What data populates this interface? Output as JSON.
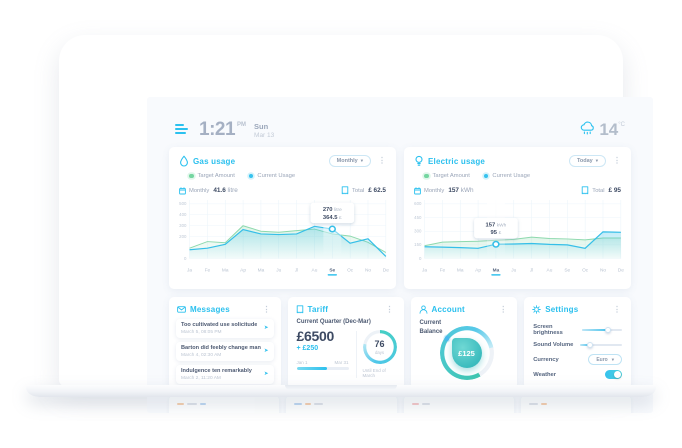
{
  "header": {
    "time": "1:21",
    "meridiem": "PM",
    "day": "Sun",
    "date": "Mar 13",
    "temperature": "14",
    "temp_unit": "°C"
  },
  "icons": {
    "kebab": "⋮",
    "caret_down": "▾",
    "arrow": "➤"
  },
  "colors": {
    "accent_cyan": "#2bc0ee",
    "target_green": "#8ed9ae",
    "current_cyan": "#36bfe8",
    "teal": "#3cbcbe",
    "dark_text": "#3d4a63",
    "muted_text": "#9aa5b8"
  },
  "gas_panel": {
    "title": "Gas usage",
    "period_selector": "Monthly",
    "legend": [
      {
        "label": "Target Amount",
        "color": "#74d6a0"
      },
      {
        "label": "Current Usage",
        "color": "#35c2ee"
      }
    ],
    "period_label": "Monthly",
    "period_value": "41.6",
    "period_unit": "litre",
    "total_label": "Total",
    "total_value": "£ 62.5",
    "tooltip": {
      "value": "270",
      "unit": "litre",
      "cost": "364.5",
      "currency": "£"
    },
    "chart_data": {
      "type": "area",
      "categories": [
        "Ja",
        "Fe",
        "Ma",
        "Ap",
        "Ma",
        "Ju",
        "Jl",
        "Au",
        "Se",
        "Oc",
        "No",
        "De"
      ],
      "series": [
        {
          "name": "Target Amount",
          "color": "#8ed9ae",
          "values": [
            95,
            155,
            145,
            300,
            250,
            240,
            255,
            270,
            225,
            205,
            148,
            55
          ]
        },
        {
          "name": "Current Usage",
          "color": "#36bfe8",
          "values": [
            80,
            95,
            130,
            265,
            225,
            220,
            225,
            295,
            270,
            140,
            180,
            20
          ]
        }
      ],
      "ylim": [
        0,
        500
      ],
      "yticks": [
        500,
        400,
        300,
        200,
        0
      ],
      "selected_index": 8,
      "selected_label": "Se"
    }
  },
  "electric_panel": {
    "title": "Electric usage",
    "period_selector": "Today",
    "legend": [
      {
        "label": "Target Amount",
        "color": "#74d6a0"
      },
      {
        "label": "Current Usage",
        "color": "#35c2ee"
      }
    ],
    "period_label": "Monthly",
    "period_value": "157",
    "period_unit": "kWh",
    "total_label": "Total",
    "total_value": "£ 95",
    "tooltip": {
      "value": "157",
      "unit": "kWh",
      "cost": "95",
      "currency": "£"
    },
    "chart_data": {
      "type": "area",
      "categories": [
        "Ja",
        "Fe",
        "Ma",
        "Ap",
        "Ma",
        "Ju",
        "Jl",
        "Au",
        "Se",
        "Oc",
        "No",
        "De"
      ],
      "series": [
        {
          "name": "Target Amount",
          "color": "#8ed9ae",
          "values": [
            140,
            180,
            185,
            190,
            200,
            210,
            235,
            220,
            215,
            205,
            225,
            225
          ]
        },
        {
          "name": "Current Usage",
          "color": "#36bfe8",
          "values": [
            130,
            125,
            120,
            112,
            157,
            160,
            165,
            155,
            150,
            112,
            292,
            288
          ]
        }
      ],
      "ylim": [
        0,
        600
      ],
      "yticks": [
        600,
        450,
        300,
        150,
        0
      ],
      "selected_index": 4,
      "selected_label": "Ma"
    }
  },
  "messages_panel": {
    "title": "Messages",
    "items": [
      {
        "text": "Too cultivated use solicitude",
        "date": "March 5, 08:05 PM"
      },
      {
        "text": "Barton did feebly change man",
        "date": "March 4, 02:30 AM"
      },
      {
        "text": "Indulgence ten remarkably",
        "date": "March 2, 11:20 AM"
      }
    ]
  },
  "tariff_panel": {
    "title": "Tariff",
    "subtitle": "Current Quarter (Dec-Mar)",
    "amount": "£6500",
    "delta": "+ £250",
    "range_start": "Jan 1",
    "range_end": "Mar 31",
    "progress_pct": 58,
    "days_left": "76",
    "days_label": "days",
    "caption": "Until End of March",
    "ring_pct": 78
  },
  "account_panel": {
    "title": "Account",
    "label": "Current Balance",
    "balance": "£125",
    "gauge_pct": 80
  },
  "settings_panel": {
    "title": "Settings",
    "rows": [
      {
        "label": "Screen brightness",
        "type": "slider",
        "value": 66
      },
      {
        "label": "Sound Volume",
        "type": "slider",
        "value": 24
      },
      {
        "label": "Currency",
        "type": "select",
        "value": "Euro"
      },
      {
        "label": "Weather",
        "type": "toggle",
        "value": true
      }
    ]
  }
}
